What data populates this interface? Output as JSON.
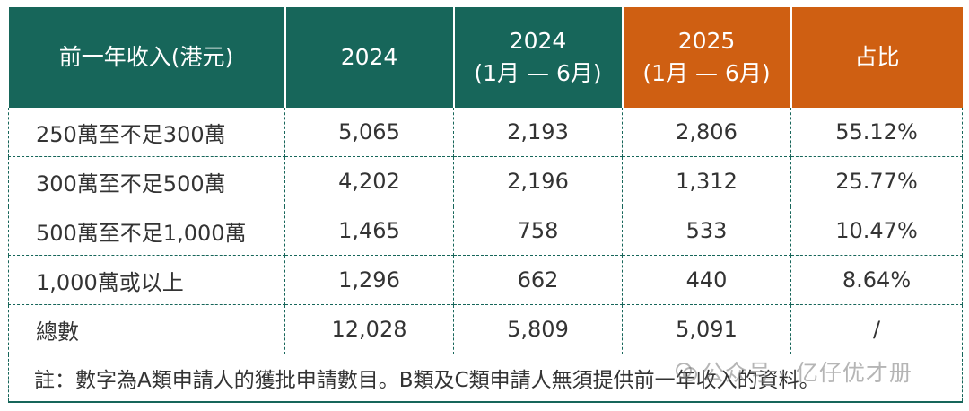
{
  "header": {
    "col1": "前一年收入(港元)",
    "col2": "2024",
    "col3_line1": "2024",
    "col3_line2": "(1月 — 6月)",
    "col4_line1": "2025",
    "col4_line2": "(1月 — 6月)",
    "col5": "占比"
  },
  "rows": [
    {
      "label": "250萬至不足300萬",
      "y2024": "5,065",
      "h2024": "2,193",
      "h2025": "2,806",
      "share": "55.12%"
    },
    {
      "label": "300萬至不足500萬",
      "y2024": "4,202",
      "h2024": "2,196",
      "h2025": "1,312",
      "share": "25.77%"
    },
    {
      "label": "500萬至不足1,000萬",
      "y2024": "1,465",
      "h2024": "758",
      "h2025": "533",
      "share": "10.47%"
    },
    {
      "label": "1,000萬或以上",
      "y2024": "1,296",
      "h2024": "662",
      "h2025": "440",
      "share": "8.64%"
    },
    {
      "label": "總數",
      "y2024": "12,028",
      "h2024": "5,809",
      "h2025": "5,091",
      "share": "/"
    }
  ],
  "note": "註：數字為A類申請人的獲批申請數目。B類及C類申請人無須提供前一年收入的資料。",
  "watermark": "公众号 · 亿仔优才册",
  "colors": {
    "header_green": "#17665a",
    "header_orange": "#cf5f12",
    "border_dashed": "#17665a"
  }
}
